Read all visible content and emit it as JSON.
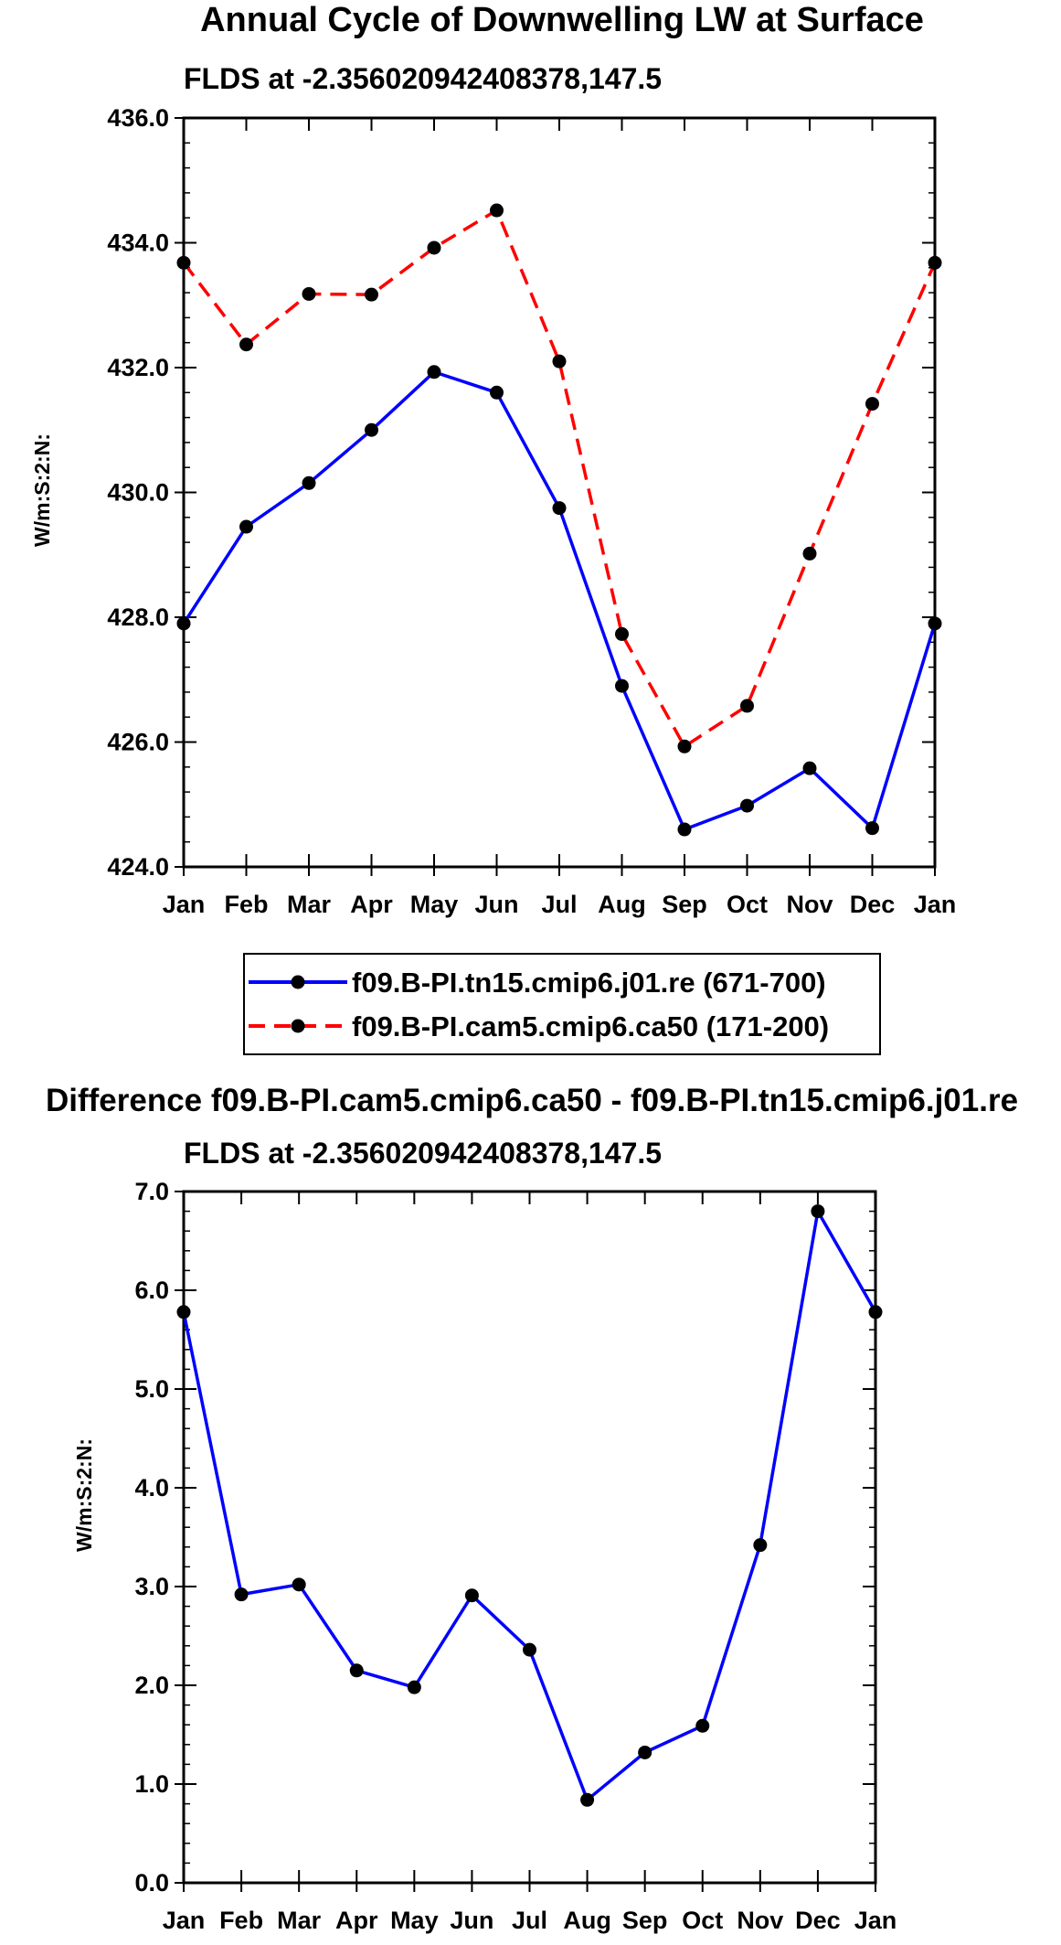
{
  "chart_data": [
    {
      "type": "line",
      "title": "Annual Cycle of Downwelling LW at Surface",
      "subtitle": "FLDS at -2.356020942408378,147.5",
      "xlabel": "",
      "ylabel": "W/m:S:2:N:",
      "categories": [
        "Jan",
        "Feb",
        "Mar",
        "Apr",
        "May",
        "Jun",
        "Jul",
        "Aug",
        "Sep",
        "Oct",
        "Nov",
        "Dec",
        "Jan"
      ],
      "ylim": [
        424.0,
        436.0
      ],
      "yticks": [
        "424.0",
        "426.0",
        "428.0",
        "430.0",
        "432.0",
        "434.0",
        "436.0"
      ],
      "series": [
        {
          "name": "f09.B-PI.tn15.cmip6.j01.re (671-700)",
          "color": "#0000ff",
          "dash": "solid",
          "values": [
            427.9,
            429.45,
            430.15,
            431.0,
            431.93,
            431.6,
            429.75,
            426.9,
            424.6,
            424.98,
            425.58,
            424.62,
            427.9
          ]
        },
        {
          "name": "f09.B-PI.cam5.cmip6.ca50 (171-200)",
          "color": "#ff0000",
          "dash": "dashed",
          "values": [
            433.68,
            432.37,
            433.18,
            433.17,
            433.92,
            434.52,
            432.1,
            427.73,
            425.93,
            426.58,
            429.02,
            431.42,
            433.68
          ]
        }
      ],
      "legend": {
        "entries": [
          "f09.B-PI.tn15.cmip6.j01.re (671-700)",
          "f09.B-PI.cam5.cmip6.ca50 (171-200)"
        ],
        "placement": "bottom-center"
      },
      "grid": false
    },
    {
      "type": "line",
      "title": "Difference f09.B-PI.cam5.cmip6.ca50 - f09.B-PI.tn15.cmip6.j01.re",
      "subtitle": "FLDS at -2.356020942408378,147.5",
      "xlabel": "",
      "ylabel": "W/m:S:2:N:",
      "categories": [
        "Jan",
        "Feb",
        "Mar",
        "Apr",
        "May",
        "Jun",
        "Jul",
        "Aug",
        "Sep",
        "Oct",
        "Nov",
        "Dec",
        "Jan"
      ],
      "ylim": [
        0.0,
        7.0
      ],
      "yticks": [
        "0.0",
        "1.0",
        "2.0",
        "3.0",
        "4.0",
        "5.0",
        "6.0",
        "7.0"
      ],
      "series": [
        {
          "name": "Difference",
          "color": "#0000ff",
          "dash": "solid",
          "values": [
            5.78,
            2.92,
            3.02,
            2.15,
            1.98,
            2.91,
            2.36,
            0.84,
            1.32,
            1.59,
            3.42,
            6.8,
            5.78
          ]
        }
      ],
      "grid": false
    }
  ]
}
